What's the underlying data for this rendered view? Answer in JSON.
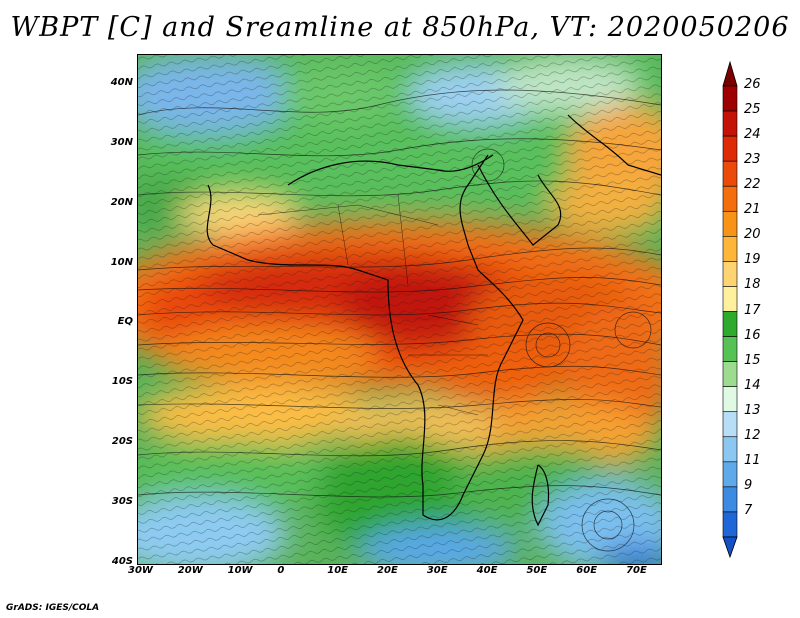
{
  "title": "WBPT [C] and Sreamline at 850hPa, VT: 2020050206",
  "credit": "GrADS: IGES/COLA",
  "map": {
    "lon_range": [
      -30,
      75
    ],
    "lat_range": [
      -40,
      45
    ],
    "lat_ticks": [
      {
        "value": 40,
        "label": "40N"
      },
      {
        "value": 30,
        "label": "30N"
      },
      {
        "value": 20,
        "label": "20N"
      },
      {
        "value": 10,
        "label": "10N"
      },
      {
        "value": 0,
        "label": "EQ"
      },
      {
        "value": -10,
        "label": "10S"
      },
      {
        "value": -20,
        "label": "20S"
      },
      {
        "value": -30,
        "label": "30S"
      },
      {
        "value": -40,
        "label": "40S"
      }
    ],
    "lon_ticks": [
      {
        "value": -30,
        "label": "30W"
      },
      {
        "value": -20,
        "label": "20W"
      },
      {
        "value": -10,
        "label": "10W"
      },
      {
        "value": 0,
        "label": "0"
      },
      {
        "value": 10,
        "label": "10E"
      },
      {
        "value": 20,
        "label": "20E"
      },
      {
        "value": 30,
        "label": "30E"
      },
      {
        "value": 40,
        "label": "40E"
      },
      {
        "value": 50,
        "label": "50E"
      },
      {
        "value": 60,
        "label": "60E"
      },
      {
        "value": 70,
        "label": "70E"
      }
    ]
  },
  "colorbar": {
    "labels": [
      "26",
      "25",
      "24",
      "23",
      "22",
      "21",
      "20",
      "19",
      "18",
      "17",
      "16",
      "15",
      "14",
      "13",
      "12",
      "11",
      "9",
      "7"
    ],
    "colors": [
      "#9e0000",
      "#c41208",
      "#df2a08",
      "#ec4a0a",
      "#f46e0e",
      "#f79418",
      "#fdb63a",
      "#fed473",
      "#fff09e",
      "#2eaa2e",
      "#56c256",
      "#9ddc90",
      "#dff9e4",
      "#b7ddf7",
      "#8cc7f2",
      "#5ea9ea",
      "#3d8ae2",
      "#1f67d6"
    ]
  }
}
